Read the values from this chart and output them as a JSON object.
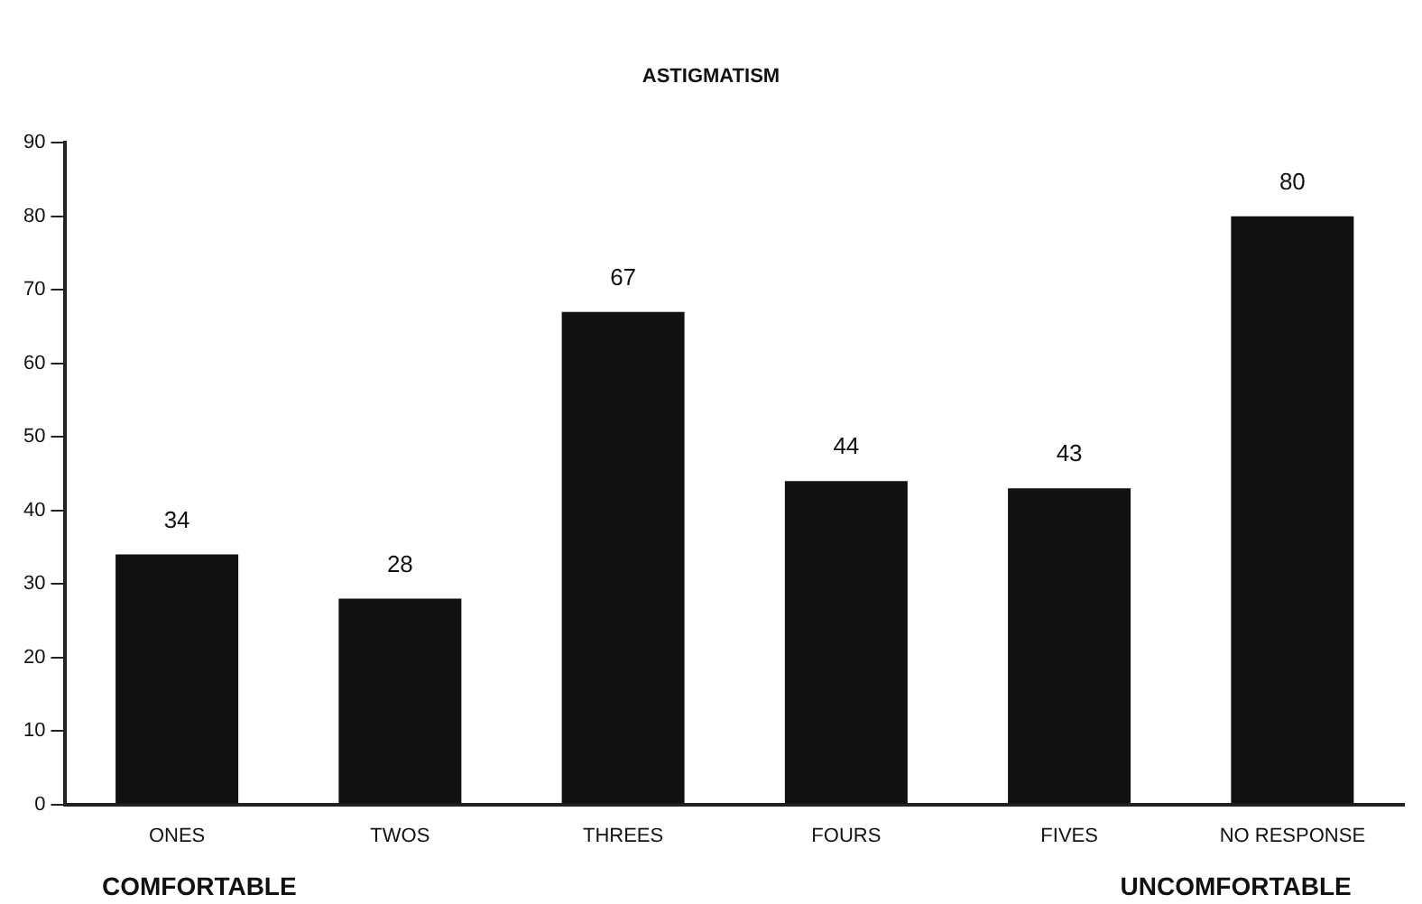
{
  "chart_data": {
    "type": "bar",
    "title": "ASTIGMATISM",
    "categories": [
      "ONES",
      "TWOS",
      "THREES",
      "FOURS",
      "FIVES",
      "NO RESPONSE"
    ],
    "values": [
      34,
      28,
      67,
      44,
      43,
      80
    ],
    "color": "#111111",
    "ylim": [
      0,
      90
    ],
    "yticks": [
      0,
      10,
      20,
      30,
      40,
      50,
      60,
      70,
      80,
      90
    ],
    "grid": false,
    "data_labels": true,
    "annotations": [
      "COMFORTABLE",
      "UNCOMFORTABLE"
    ]
  }
}
